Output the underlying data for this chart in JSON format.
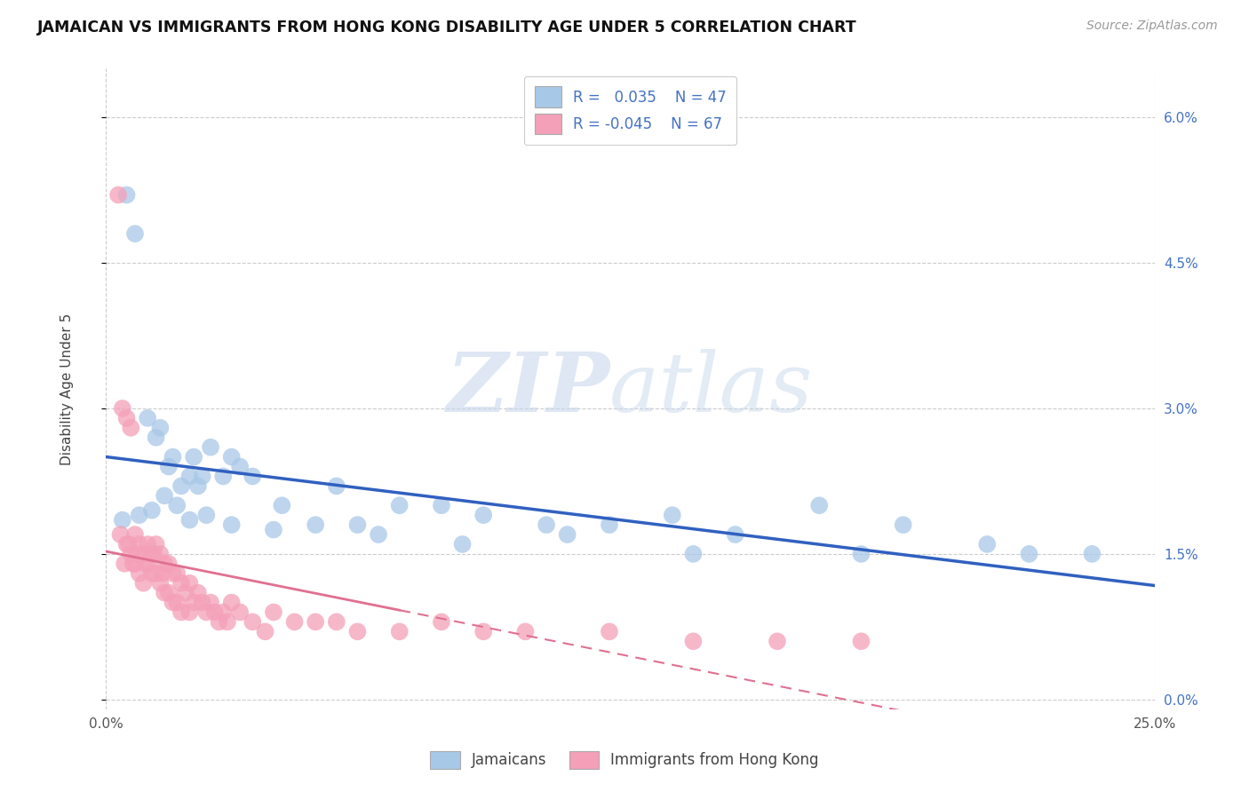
{
  "title": "JAMAICAN VS IMMIGRANTS FROM HONG KONG DISABILITY AGE UNDER 5 CORRELATION CHART",
  "source": "Source: ZipAtlas.com",
  "ylabel": "Disability Age Under 5",
  "ytick_vals": [
    0.0,
    1.5,
    3.0,
    4.5,
    6.0
  ],
  "ytick_labels": [
    "0.0%",
    "1.5%",
    "3.0%",
    "4.5%",
    "6.0%"
  ],
  "xlim": [
    0.0,
    25.0
  ],
  "ylim": [
    -0.1,
    6.5
  ],
  "color_blue": "#a8c8e8",
  "color_pink": "#f4a0b8",
  "line_color_blue": "#3060c0",
  "line_color_pink": "#e07090",
  "background_color": "#ffffff",
  "grid_color": "#cccccc",
  "watermark_zip": "ZIP",
  "watermark_atlas": "atlas",
  "jamaicans_x": [
    0.5,
    0.7,
    1.0,
    1.2,
    1.3,
    1.5,
    1.6,
    1.8,
    2.0,
    2.1,
    2.2,
    2.3,
    2.5,
    2.8,
    3.0,
    3.2,
    3.5,
    4.2,
    5.5,
    6.0,
    7.0,
    8.0,
    9.0,
    10.5,
    12.0,
    13.5,
    15.0,
    17.0,
    19.0,
    21.0,
    23.5,
    0.4,
    0.8,
    1.1,
    1.4,
    1.7,
    2.0,
    2.4,
    3.0,
    4.0,
    5.0,
    6.5,
    8.5,
    11.0,
    14.0,
    18.0,
    22.0
  ],
  "jamaicans_y": [
    5.2,
    4.8,
    2.9,
    2.7,
    2.8,
    2.4,
    2.5,
    2.2,
    2.3,
    2.5,
    2.2,
    2.3,
    2.6,
    2.3,
    2.5,
    2.4,
    2.3,
    2.0,
    2.2,
    1.8,
    2.0,
    2.0,
    1.9,
    1.8,
    1.8,
    1.9,
    1.7,
    2.0,
    1.8,
    1.6,
    1.5,
    1.85,
    1.9,
    1.95,
    2.1,
    2.0,
    1.85,
    1.9,
    1.8,
    1.75,
    1.8,
    1.7,
    1.6,
    1.7,
    1.5,
    1.5,
    1.5
  ],
  "hk_x": [
    0.3,
    0.4,
    0.5,
    0.5,
    0.6,
    0.6,
    0.7,
    0.7,
    0.8,
    0.8,
    0.9,
    0.9,
    1.0,
    1.0,
    1.1,
    1.1,
    1.2,
    1.2,
    1.3,
    1.3,
    1.4,
    1.4,
    1.5,
    1.5,
    1.6,
    1.6,
    1.7,
    1.7,
    1.8,
    1.8,
    1.9,
    2.0,
    2.0,
    2.1,
    2.2,
    2.3,
    2.4,
    2.5,
    2.6,
    2.7,
    2.8,
    2.9,
    3.0,
    3.2,
    3.5,
    3.8,
    4.0,
    4.5,
    5.0,
    5.5,
    6.0,
    7.0,
    8.0,
    9.0,
    10.0,
    12.0,
    14.0,
    16.0,
    18.0,
    0.35,
    0.55,
    0.75,
    0.95,
    1.15,
    1.35,
    0.45,
    0.65
  ],
  "hk_y": [
    5.2,
    3.0,
    2.9,
    1.6,
    2.8,
    1.5,
    1.7,
    1.4,
    1.6,
    1.3,
    1.5,
    1.2,
    1.6,
    1.4,
    1.5,
    1.3,
    1.6,
    1.3,
    1.5,
    1.2,
    1.4,
    1.1,
    1.4,
    1.1,
    1.3,
    1.0,
    1.3,
    1.0,
    1.2,
    0.9,
    1.1,
    1.2,
    0.9,
    1.0,
    1.1,
    1.0,
    0.9,
    1.0,
    0.9,
    0.8,
    0.9,
    0.8,
    1.0,
    0.9,
    0.8,
    0.7,
    0.9,
    0.8,
    0.8,
    0.8,
    0.7,
    0.7,
    0.8,
    0.7,
    0.7,
    0.7,
    0.6,
    0.6,
    0.6,
    1.7,
    1.6,
    1.5,
    1.4,
    1.5,
    1.3,
    1.4,
    1.4
  ]
}
